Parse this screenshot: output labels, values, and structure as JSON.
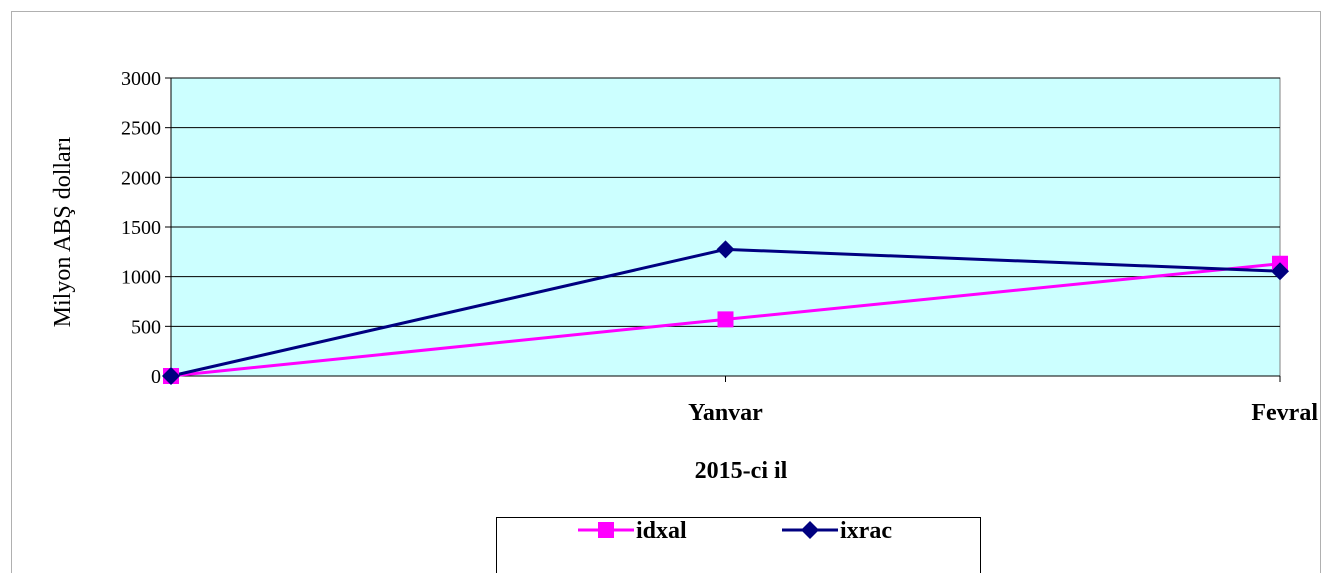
{
  "chart_data": {
    "type": "line",
    "categories": [
      "",
      "Yanvar",
      "Fevral"
    ],
    "series": [
      {
        "name": "idxal",
        "values": [
          0,
          570,
          1130
        ],
        "color": "#ff00ff",
        "marker": "square"
      },
      {
        "name": "ixrac",
        "values": [
          0,
          1275,
          1055
        ],
        "color": "#000080",
        "marker": "diamond"
      }
    ],
    "title": "",
    "xlabel": "2015-ci il",
    "ylabel": "Milyon ABŞ dolları",
    "ylim": [
      0,
      3000
    ],
    "yticks": [
      "0",
      "500",
      "1000",
      "1500",
      "2000",
      "2500",
      "3000"
    ],
    "grid": true,
    "legend_position": "bottom-center",
    "plot_background": "#ccffff"
  }
}
